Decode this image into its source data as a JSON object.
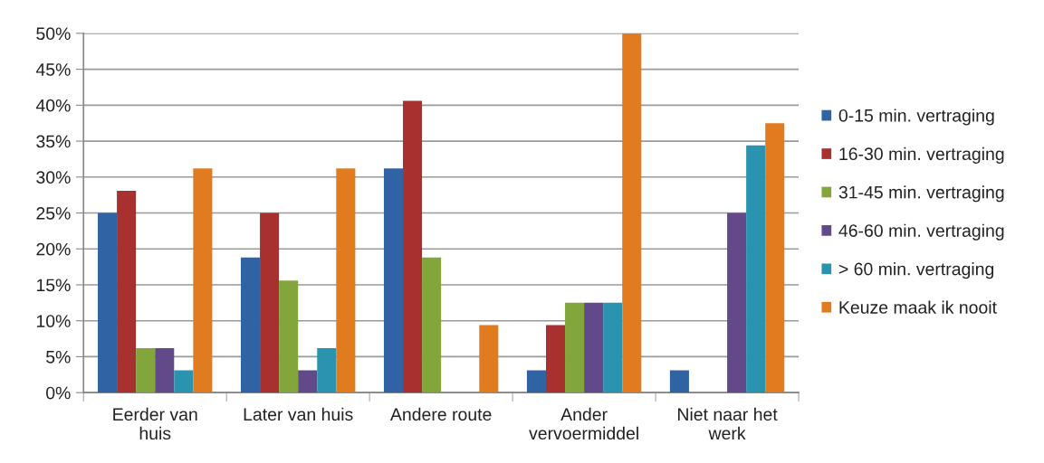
{
  "chart_data": {
    "type": "bar",
    "categories": [
      "Eerder van\nhuis",
      "Later van huis",
      "Andere route",
      "Ander\nvervoermiddel",
      "Niet naar het\nwerk"
    ],
    "series": [
      {
        "name": "0-15 min. vertraging",
        "color": "#2f63a3",
        "values": [
          25,
          18.8,
          31.2,
          3.1,
          3.1
        ]
      },
      {
        "name": "16-30 min. vertraging",
        "color": "#a8302e",
        "values": [
          28.1,
          25,
          40.6,
          9.4,
          null
        ]
      },
      {
        "name": "31-45 min. vertraging",
        "color": "#82a63b",
        "values": [
          6.2,
          15.6,
          18.8,
          12.5,
          null
        ]
      },
      {
        "name": "46-60 min. vertraging",
        "color": "#624a8a",
        "values": [
          6.2,
          3.1,
          null,
          12.5,
          25
        ]
      },
      {
        "name": "> 60 min. vertraging",
        "color": "#2a93b0",
        "values": [
          3.1,
          6.2,
          null,
          12.5,
          34.4
        ]
      },
      {
        "name": "Keuze maak ik nooit",
        "color": "#e17b20",
        "values": [
          31.2,
          31.2,
          9.4,
          50,
          37.5
        ]
      }
    ],
    "ylim": [
      0,
      50
    ],
    "yticks": [
      {
        "value": 0,
        "label": "0%"
      },
      {
        "value": 5,
        "label": "5%"
      },
      {
        "value": 10,
        "label": "10%"
      },
      {
        "value": 15,
        "label": "15%"
      },
      {
        "value": 20,
        "label": "20%"
      },
      {
        "value": 25,
        "label": "25%"
      },
      {
        "value": 30,
        "label": "30%"
      },
      {
        "value": 35,
        "label": "35%"
      },
      {
        "value": 40,
        "label": "40%"
      },
      {
        "value": 45,
        "label": "45%"
      },
      {
        "value": 50,
        "label": "50%"
      }
    ],
    "grid": "y",
    "legend": "right"
  }
}
